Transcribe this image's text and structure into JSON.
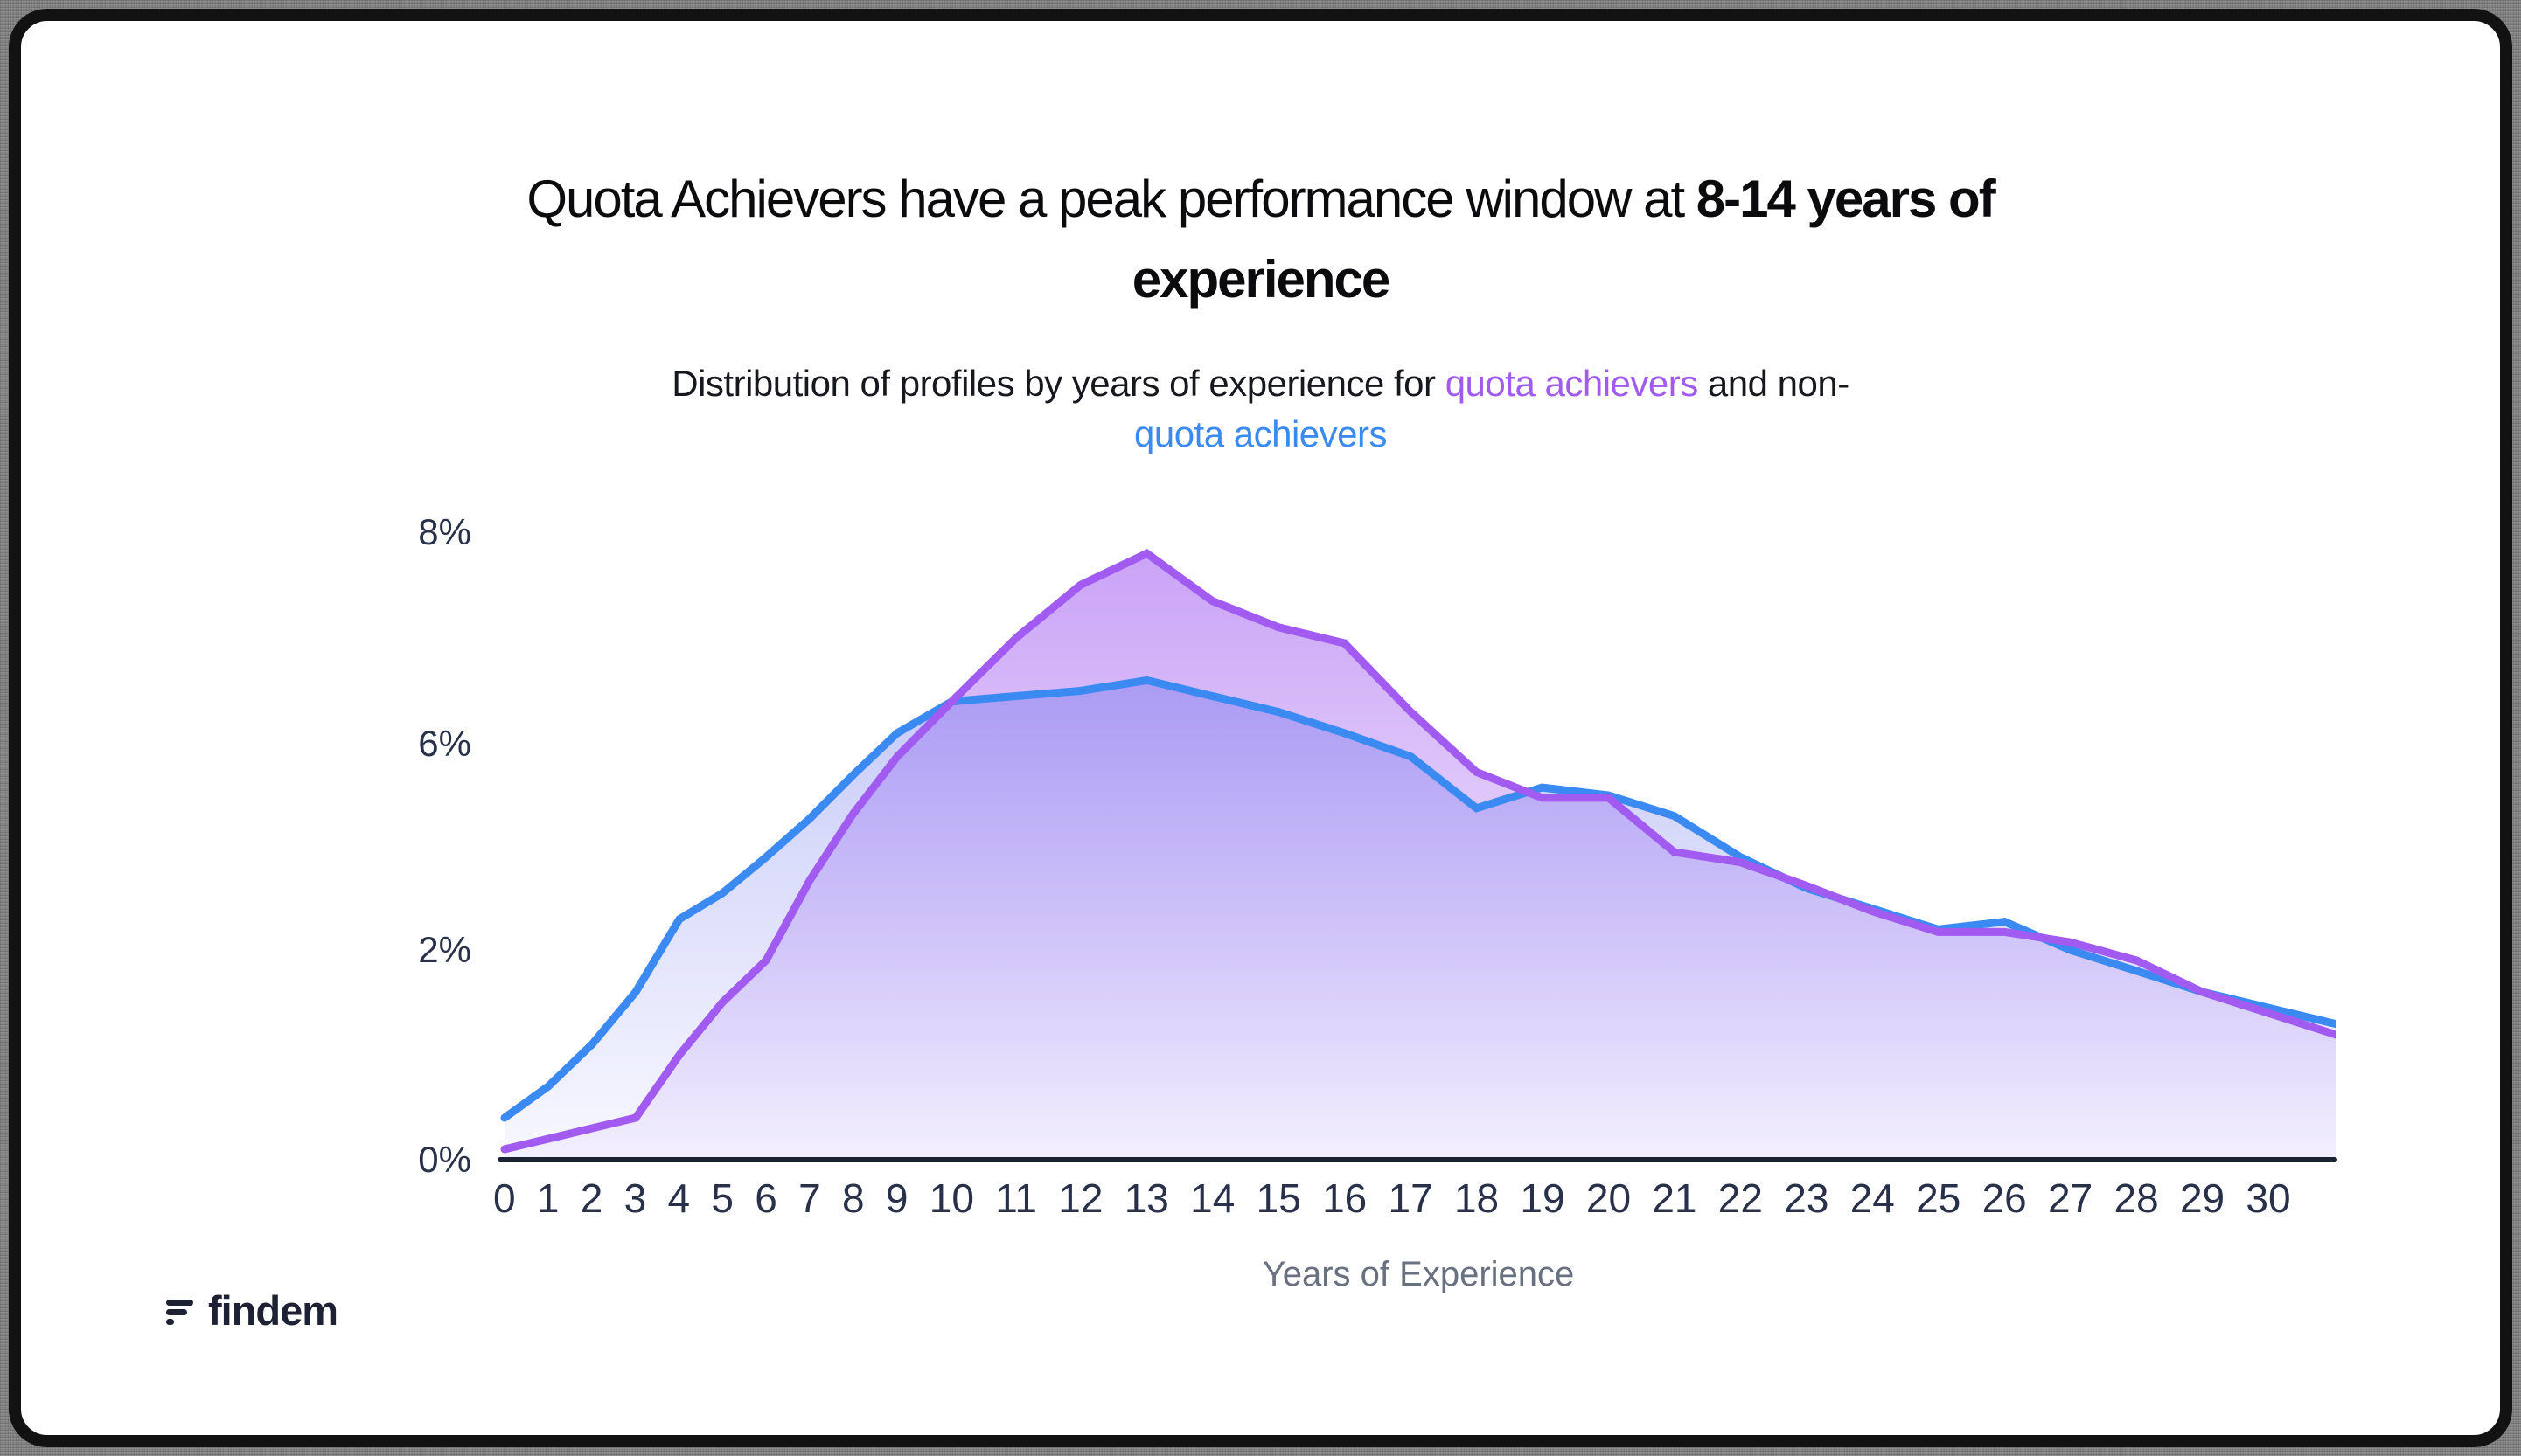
{
  "title": {
    "line1_normal": "Quota Achievers have a peak performance window at ",
    "line1_bold": "8-14 years of",
    "line2_bold": "experience"
  },
  "subtitle": {
    "part1": "Distribution of profiles by years of experience for ",
    "quota_purple": "quota achievers",
    "part2": " and non-",
    "quota_blue": "quota achievers"
  },
  "colors": {
    "quota": "#a15bf0",
    "non_quota": "#3b8af2",
    "axis_text": "#283149",
    "axis_line": "#1b2335",
    "muted_text": "#69707f",
    "logo": "#1d2133"
  },
  "chart_data": {
    "type": "area",
    "title": "Quota Achievers have a peak performance window at 8-14 years of experience",
    "subtitle": "Distribution of profiles by years of experience for quota achievers and non-quota achievers",
    "x": [
      "0",
      "1",
      "2",
      "3",
      "4",
      "5",
      "6",
      "7",
      "8",
      "9",
      "10",
      "11",
      "12",
      "13",
      "14",
      "15",
      "16",
      "17",
      "18",
      "19",
      "20",
      "21",
      "22",
      "23",
      "24",
      "25",
      "26",
      "27",
      "28",
      "29",
      "30"
    ],
    "series": [
      {
        "name": "quota achievers",
        "color": "#a15bf0",
        "values": [
          0.1,
          0.2,
          0.3,
          0.4,
          1.0,
          1.5,
          1.9,
          3.35,
          4.65,
          5.75,
          6.4,
          7.0,
          7.5,
          7.8,
          7.35,
          7.1,
          6.95,
          6.3,
          5.45,
          4.95,
          4.95,
          3.9,
          3.7,
          3.25,
          2.75,
          2.35,
          2.35,
          2.15,
          1.9,
          1.6,
          1.4
        ]
      },
      {
        "name": "non-quota achievers",
        "color": "#3b8af2",
        "values": [
          0.4,
          0.7,
          1.1,
          1.6,
          2.6,
          3.1,
          3.8,
          4.55,
          5.4,
          6.1,
          6.4,
          6.45,
          6.5,
          6.6,
          6.45,
          6.3,
          6.1,
          5.75,
          4.75,
          5.15,
          5.0,
          4.6,
          3.8,
          3.2,
          2.8,
          2.4,
          2.55,
          2.0,
          1.8,
          1.6,
          1.45
        ]
      }
    ],
    "xlabel": "Years of Experience",
    "ylabel": "",
    "yticks": [
      {
        "label": "8%",
        "value": 8
      },
      {
        "label": "6%",
        "value": 6
      },
      {
        "label": "2%",
        "value": 2
      },
      {
        "label": "0%",
        "value": 0
      }
    ],
    "ylim": [
      0,
      8.4
    ],
    "grid": false,
    "legend_position": "inline-in-subtitle",
    "axis_note": "y tick labels 8,6,2,0 are evenly spaced on the original image"
  },
  "footer": {
    "logo_text": "findem"
  }
}
